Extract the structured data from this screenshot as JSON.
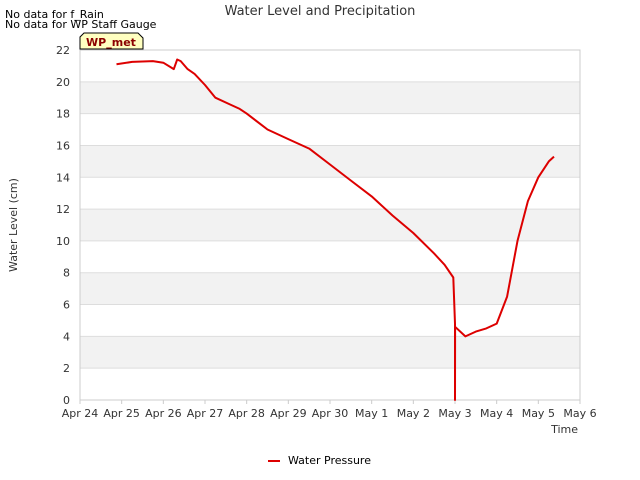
{
  "notes": [
    "No data for f_Rain",
    "No data for WP Staff Gauge"
  ],
  "badge": {
    "label": "WP_met",
    "fill": "#ffffc0",
    "text_color": "#8b0000"
  },
  "colors": {
    "series": "#dd0000",
    "band": "#f2f2f2",
    "grid": "#dddddd",
    "axis": "#cccccc"
  },
  "chart_data": {
    "type": "line",
    "title": "Water Level and Precipitation",
    "xlabel": "Time",
    "ylabel": "Water Level (cm)",
    "ylim": [
      0,
      22
    ],
    "yticks": [
      0,
      2,
      4,
      6,
      8,
      10,
      12,
      14,
      16,
      18,
      20,
      22
    ],
    "xlim": [
      "Apr 24",
      "May 6"
    ],
    "xticks": [
      "Apr 24",
      "Apr 25",
      "Apr 26",
      "Apr 27",
      "Apr 28",
      "Apr 29",
      "Apr 30",
      "May 1",
      "May 2",
      "May 3",
      "May 4",
      "May 5",
      "May 6"
    ],
    "grid": true,
    "legend_position": "bottom-center",
    "series": [
      {
        "name": "Water Pressure",
        "color": "#dd0000",
        "x": [
          "Apr 24 21:00",
          "Apr 25 06:00",
          "Apr 25 18:00",
          "Apr 26 00:00",
          "Apr 26 06:00",
          "Apr 26 08:00",
          "Apr 26 10:00",
          "Apr 26 14:00",
          "Apr 26 18:00",
          "Apr 27 00:00",
          "Apr 27 06:00",
          "Apr 27 14:00",
          "Apr 27 20:00",
          "Apr 28 00:00",
          "Apr 28 12:00",
          "Apr 29 00:00",
          "Apr 29 12:00",
          "Apr 30 00:00",
          "Apr 30 12:00",
          "May 1 00:00",
          "May 1 12:00",
          "May 2 00:00",
          "May 2 12:00",
          "May 2 18:00",
          "May 2 23:00",
          "May 3 00:00",
          "May 3 00:01",
          "May 3 00:02",
          "May 3 06:00",
          "May 3 12:00",
          "May 3 18:00",
          "May 4 00:00",
          "May 4 06:00",
          "May 4 12:00",
          "May 4 18:00",
          "May 5 00:00",
          "May 5 06:00",
          "May 5 09:00"
        ],
        "y": [
          21.1,
          21.25,
          21.3,
          21.2,
          20.8,
          21.4,
          21.3,
          20.8,
          20.5,
          19.8,
          19.0,
          18.6,
          18.3,
          18.0,
          17.0,
          16.4,
          15.8,
          14.8,
          13.8,
          12.8,
          11.6,
          10.5,
          9.2,
          8.5,
          7.7,
          4.8,
          0.0,
          4.6,
          4.0,
          4.3,
          4.5,
          4.8,
          6.5,
          10.0,
          12.5,
          14.0,
          15.0,
          15.3
        ]
      }
    ]
  }
}
